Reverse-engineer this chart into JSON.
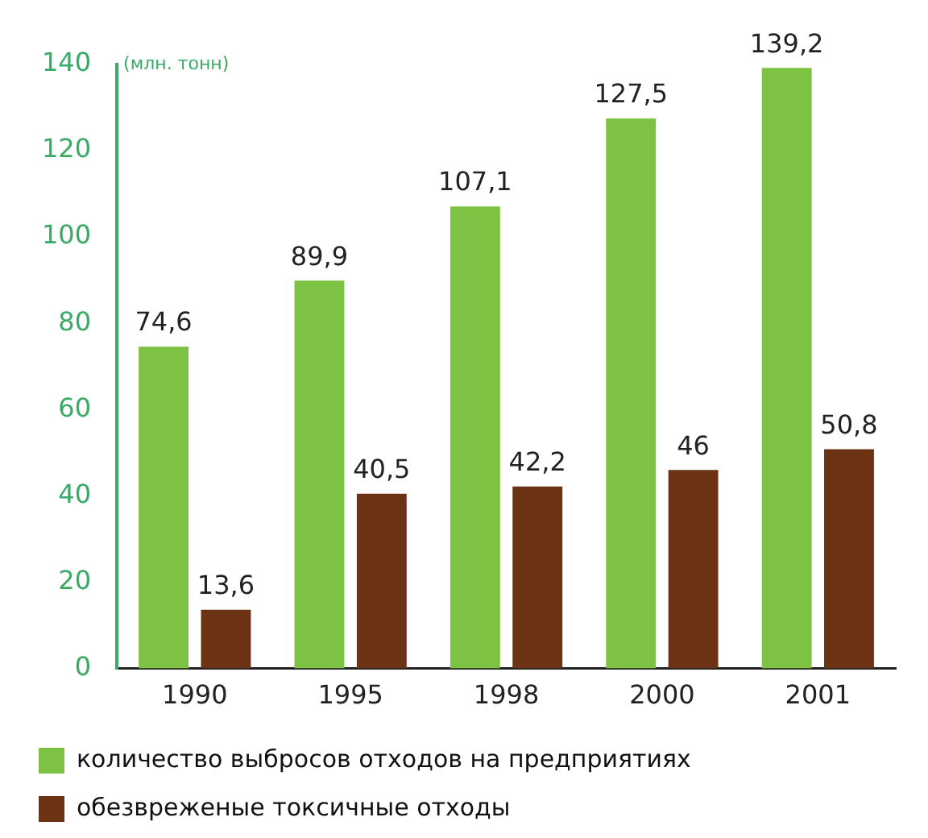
{
  "chart_data": {
    "type": "bar",
    "ylabel": "(млн. тонн)",
    "categories": [
      "1990",
      "1995",
      "1998",
      "2000",
      "2001"
    ],
    "series": [
      {
        "name": "количество выбросов отходов на предприятиях",
        "color": "#7dc242",
        "values": [
          74.6,
          89.9,
          107.1,
          127.5,
          139.2
        ],
        "value_labels": [
          "74,6",
          "89,9",
          "107,1",
          "127,5",
          "139,2"
        ]
      },
      {
        "name": "обезвреженые токсичные отходы",
        "color": "#6b3214",
        "values": [
          13.6,
          40.5,
          42.2,
          46,
          50.8
        ],
        "value_labels": [
          "13,6",
          "40,5",
          "42,2",
          "46",
          "50,8"
        ]
      }
    ],
    "ylim": [
      0,
      140
    ],
    "yticks": [
      0,
      20,
      40,
      60,
      80,
      100,
      120,
      140
    ],
    "grid": false,
    "legend": "bottom"
  }
}
